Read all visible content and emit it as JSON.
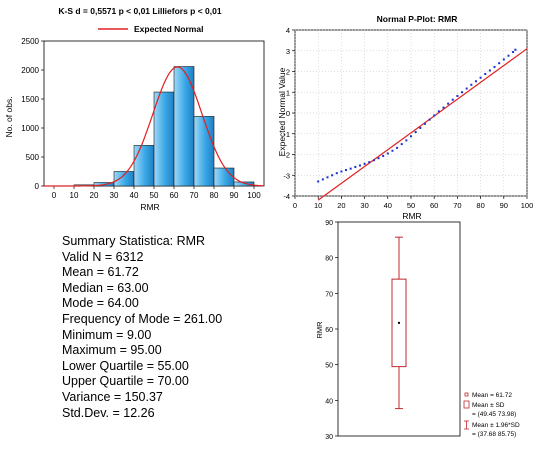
{
  "histogram": {
    "title": "K-S d = 0,5571 p < 0,01 Lilliefors p < 0,01",
    "legend_label": "Expected Normal",
    "xlabel": "RMR",
    "ylabel": "No. of obs.",
    "bar_color": "#3aa8e6",
    "curve_color": "#e02020"
  },
  "qq": {
    "title": "Normal P-Plot: RMR",
    "xlabel": "RMR",
    "ylabel": "Expected Normal Value",
    "point_color": "#1a2fd0",
    "line_color": "#e02020"
  },
  "boxplot": {
    "ylabel": "RMR",
    "box_color": "#c0282d",
    "legend": [
      {
        "label": "Mean = 61.72",
        "sub": ""
      },
      {
        "label": "Mean ± SD",
        "sub": "= (49.45 73.98)"
      },
      {
        "label": "Mean ± 1.96*SD",
        "sub": "= (37.68 85.75)"
      }
    ]
  },
  "summary": {
    "title": "Summary Statistica: RMR",
    "lines": [
      "Valid N = 6312",
      "Mean = 61.72",
      "Median = 63.00",
      "Mode = 64.00",
      "Frequency of Mode = 261.00",
      "Minimum = 9.00",
      "Maximum = 95.00",
      "Lower Quartile = 55.00",
      "Upper Quartile = 70.00",
      "Variance = 150.37",
      "Std.Dev. = 12.26"
    ]
  },
  "chart_data": [
    {
      "type": "bar",
      "title": "K-S d = 0,5571 p < 0,01 Lilliefors p < 0,01",
      "xlabel": "RMR",
      "ylabel": "No. of obs.",
      "bin_edges": [
        0,
        10,
        20,
        30,
        40,
        50,
        60,
        70,
        80,
        90,
        100
      ],
      "values": [
        0,
        20,
        60,
        250,
        700,
        1620,
        2060,
        1200,
        310,
        70
      ],
      "xlim": [
        -5,
        105
      ],
      "ylim": [
        0,
        2500
      ],
      "xticks": [
        0,
        10,
        20,
        30,
        40,
        50,
        60,
        70,
        80,
        90,
        100
      ],
      "yticks": [
        0,
        500,
        1000,
        1500,
        2000,
        2500
      ],
      "overlay": {
        "name": "Expected Normal",
        "type": "normal_curve",
        "mean": 61.72,
        "sd": 12.26,
        "n": 6312,
        "bin_width": 10
      },
      "legend": "top"
    },
    {
      "type": "scatter",
      "title": "Normal P-Plot: RMR",
      "xlabel": "RMR",
      "ylabel": "Expected Normal Value",
      "xlim": [
        0,
        100
      ],
      "ylim": [
        -4,
        4
      ],
      "xticks": [
        0,
        10,
        20,
        30,
        40,
        50,
        60,
        70,
        80,
        90,
        100
      ],
      "yticks": [
        -4,
        -3,
        -2,
        -1,
        0,
        1,
        2,
        3,
        4
      ],
      "points": [
        [
          10,
          -3.3
        ],
        [
          12,
          -3.2
        ],
        [
          14,
          -3.1
        ],
        [
          16,
          -3.0
        ],
        [
          18,
          -2.9
        ],
        [
          20,
          -2.82
        ],
        [
          22,
          -2.75
        ],
        [
          24,
          -2.68
        ],
        [
          26,
          -2.6
        ],
        [
          28,
          -2.53
        ],
        [
          30,
          -2.45
        ],
        [
          32,
          -2.37
        ],
        [
          34,
          -2.28
        ],
        [
          36,
          -2.18
        ],
        [
          38,
          -2.07
        ],
        [
          40,
          -1.95
        ],
        [
          42,
          -1.82
        ],
        [
          44,
          -1.68
        ],
        [
          46,
          -1.5
        ],
        [
          48,
          -1.32
        ],
        [
          50,
          -1.12
        ],
        [
          52,
          -0.92
        ],
        [
          54,
          -0.72
        ],
        [
          56,
          -0.52
        ],
        [
          58,
          -0.32
        ],
        [
          60,
          -0.12
        ],
        [
          62,
          0.08
        ],
        [
          64,
          0.26
        ],
        [
          66,
          0.45
        ],
        [
          68,
          0.64
        ],
        [
          70,
          0.82
        ],
        [
          72,
          1.0
        ],
        [
          74,
          1.18
        ],
        [
          76,
          1.36
        ],
        [
          78,
          1.53
        ],
        [
          80,
          1.7
        ],
        [
          82,
          1.88
        ],
        [
          84,
          2.05
        ],
        [
          86,
          2.22
        ],
        [
          88,
          2.4
        ],
        [
          90,
          2.58
        ],
        [
          92,
          2.76
        ],
        [
          94,
          2.94
        ],
        [
          95,
          3.05
        ]
      ],
      "reference_line": {
        "x": [
          10,
          100
        ],
        "y": [
          -4.2,
          3.1
        ]
      },
      "grid": true
    },
    {
      "type": "box",
      "ylabel": "RMR",
      "ylim": [
        30,
        90
      ],
      "yticks": [
        30,
        40,
        50,
        60,
        70,
        80,
        90
      ],
      "mean": 61.72,
      "box": [
        49.45,
        73.98
      ],
      "whiskers": [
        37.68,
        85.75
      ]
    }
  ]
}
